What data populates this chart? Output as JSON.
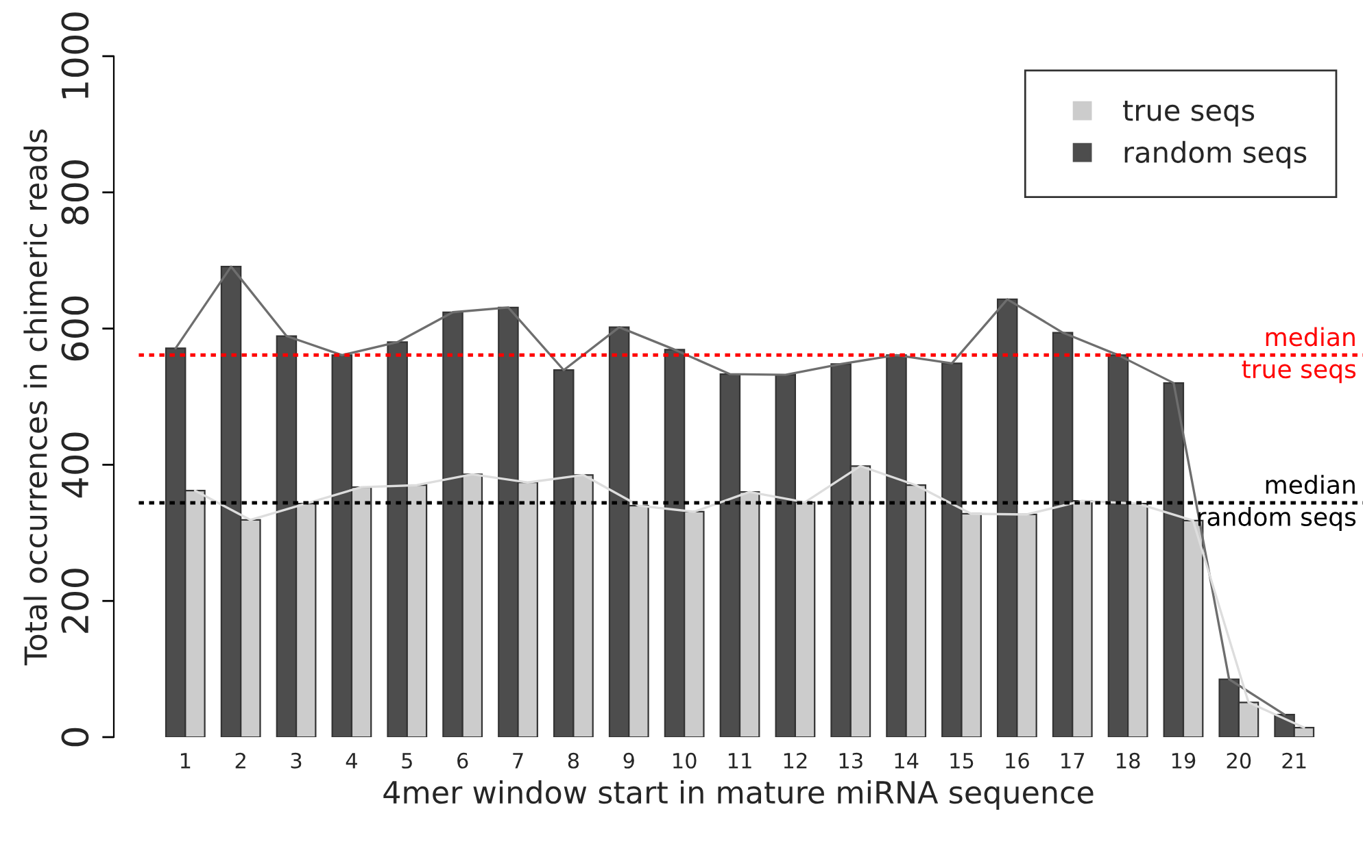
{
  "chart_data": {
    "type": "bar",
    "xlabel": "4mer window start in mature miRNA sequence",
    "ylabel": "Total occurrences in chimeric reads",
    "categories": [
      "1",
      "2",
      "3",
      "4",
      "5",
      "6",
      "7",
      "8",
      "9",
      "10",
      "11",
      "12",
      "13",
      "14",
      "15",
      "16",
      "17",
      "18",
      "19",
      "20",
      "21"
    ],
    "series": [
      {
        "name": "random seqs",
        "color": "#4d4d4d",
        "values": [
          571,
          691,
          589,
          561,
          580,
          624,
          631,
          539,
          602,
          569,
          533,
          532,
          548,
          561,
          549,
          643,
          594,
          561,
          520,
          85,
          33
        ]
      },
      {
        "name": "true seqs",
        "color": "#cccccc",
        "values": [
          362,
          319,
          343,
          367,
          370,
          386,
          374,
          385,
          340,
          331,
          360,
          345,
          398,
          370,
          328,
          327,
          347,
          343,
          318,
          51,
          14
        ]
      },
      {
        "type": "line",
        "color": "#6e6e6e",
        "values": [
          571,
          691,
          589,
          561,
          580,
          624,
          631,
          539,
          602,
          569,
          533,
          532,
          548,
          561,
          549,
          643,
          594,
          561,
          520,
          85,
          33
        ]
      },
      {
        "type": "line",
        "color": "#dddddd",
        "values": [
          362,
          319,
          343,
          367,
          370,
          386,
          374,
          385,
          340,
          331,
          360,
          345,
          398,
          370,
          328,
          327,
          347,
          343,
          318,
          51,
          14
        ]
      }
    ],
    "ylim": [
      0,
      1000
    ],
    "yticks": [
      0,
      200,
      400,
      600,
      800,
      1000
    ],
    "ref_lines": [
      {
        "axis": "y",
        "value": 561,
        "label": "median\ntrue seqs",
        "color": "#ff0000",
        "line_style": "dotted"
      },
      {
        "axis": "y",
        "value": 344,
        "label": "median\nrandom seqs",
        "color": "#000000",
        "line_style": "dotted"
      }
    ],
    "grid": false,
    "legend": "top right"
  }
}
